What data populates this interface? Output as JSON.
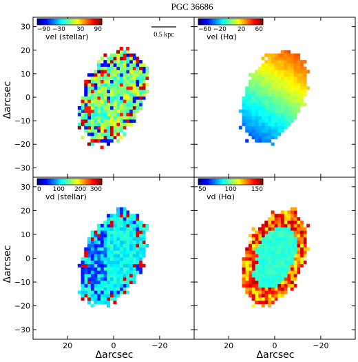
{
  "title": "PGC 36686",
  "axis_label": "Δarcsec",
  "scalebar_label": "0.5 kpc",
  "chart_data": {
    "type": "heatmap",
    "title": "PGC 36686",
    "xlabel": "Δarcsec",
    "ylabel": "Δarcsec",
    "xlim": [
      35,
      -35
    ],
    "ylim": [
      -34,
      34
    ],
    "xticks": [
      20,
      0,
      -20
    ],
    "yticks": [
      30,
      20,
      10,
      0,
      -10,
      -20,
      -30
    ],
    "colormap": "jet",
    "grid": false,
    "panels": [
      {
        "name": "vel (stellar)",
        "label": "vel (stellar)",
        "cbar_ticks": [
          -90,
          -30,
          30,
          90
        ],
        "cbar_range": [
          -90,
          90
        ],
        "scalebar": "0.5 kpc",
        "description": "noisy stellar velocity field, mostly near zero"
      },
      {
        "name": "vel (Hα)",
        "label": "vel (Hα)",
        "cbar_ticks": [
          -60,
          -20,
          20,
          60
        ],
        "cbar_range": [
          -60,
          60
        ],
        "description": "smooth gas rotation: blue (approaching) north-east, red (receding) south-west"
      },
      {
        "name": "vd (stellar)",
        "label": "vd (stellar)",
        "cbar_ticks": [
          0,
          100,
          200,
          300
        ],
        "cbar_range": [
          0,
          300
        ],
        "description": "stellar velocity dispersion, low (blue) on east side"
      },
      {
        "name": "vd (Hα)",
        "label": "vd (Hα)",
        "cbar_ticks": [
          50,
          100,
          150
        ],
        "cbar_range": [
          50,
          150
        ],
        "description": "gas velocity dispersion, elevated (red) at the edges"
      }
    ]
  }
}
